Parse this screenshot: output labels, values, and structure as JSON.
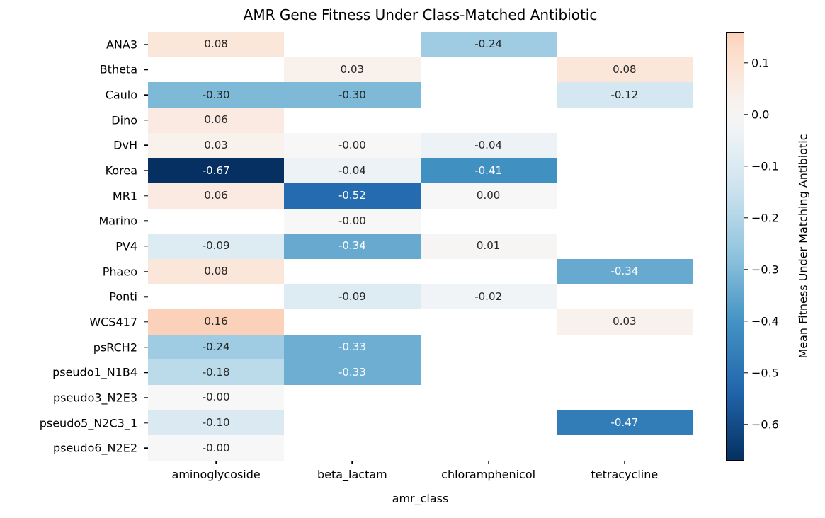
{
  "chart_data": {
    "type": "heatmap",
    "title": "AMR Gene Fitness Under Class-Matched Antibiotic",
    "xlabel": "amr_class",
    "ylabel": "",
    "colorbar_label": "Mean Fitness Under Matching Antibiotic",
    "columns": [
      "aminoglycoside",
      "beta_lactam",
      "chloramphenicol",
      "tetracycline"
    ],
    "rows": [
      "ANA3",
      "Btheta",
      "Caulo",
      "Dino",
      "DvH",
      "Korea",
      "MR1",
      "Marino",
      "PV4",
      "Phaeo",
      "Ponti",
      "WCS417",
      "psRCH2",
      "pseudo1_N1B4",
      "pseudo3_N2E3",
      "pseudo5_N2C3_1",
      "pseudo6_N2E2"
    ],
    "values": [
      [
        0.08,
        null,
        -0.24,
        null
      ],
      [
        null,
        0.03,
        null,
        0.08
      ],
      [
        -0.3,
        -0.3,
        null,
        -0.12
      ],
      [
        0.06,
        null,
        null,
        null
      ],
      [
        0.03,
        -0.0,
        -0.04,
        null
      ],
      [
        -0.67,
        -0.04,
        -0.41,
        null
      ],
      [
        0.06,
        -0.52,
        0.0,
        null
      ],
      [
        null,
        -0.0,
        null,
        null
      ],
      [
        -0.09,
        -0.34,
        0.01,
        null
      ],
      [
        0.08,
        null,
        null,
        -0.34
      ],
      [
        null,
        -0.09,
        -0.02,
        null
      ],
      [
        0.16,
        null,
        null,
        0.03
      ],
      [
        -0.24,
        -0.33,
        null,
        null
      ],
      [
        -0.18,
        -0.33,
        null,
        null
      ],
      [
        -0.0,
        null,
        null,
        null
      ],
      [
        -0.1,
        null,
        null,
        -0.47
      ],
      [
        -0.0,
        null,
        null,
        null
      ]
    ],
    "annotations": [
      [
        "0.08",
        null,
        "-0.24",
        null
      ],
      [
        null,
        "0.03",
        null,
        "0.08"
      ],
      [
        "-0.30",
        "-0.30",
        null,
        "-0.12"
      ],
      [
        "0.06",
        null,
        null,
        null
      ],
      [
        "0.03",
        "-0.00",
        "-0.04",
        null
      ],
      [
        "-0.67",
        "-0.04",
        "-0.41",
        null
      ],
      [
        "0.06",
        "-0.52",
        "0.00",
        null
      ],
      [
        null,
        "-0.00",
        null,
        null
      ],
      [
        "-0.09",
        "-0.34",
        "0.01",
        null
      ],
      [
        "0.08",
        null,
        null,
        "-0.34"
      ],
      [
        null,
        "-0.09",
        "-0.02",
        null
      ],
      [
        "0.16",
        null,
        null,
        "0.03"
      ],
      [
        "-0.24",
        "-0.33",
        null,
        null
      ],
      [
        "-0.18",
        "-0.33",
        null,
        null
      ],
      [
        "-0.00",
        null,
        null,
        null
      ],
      [
        "-0.10",
        null,
        null,
        "-0.47"
      ],
      [
        "-0.00",
        null,
        null,
        null
      ]
    ],
    "colormap": "RdBu_r",
    "center": 0,
    "vmin": -0.67,
    "vmax": 0.16,
    "colorbar_ticks": [
      0.1,
      0.0,
      -0.1,
      -0.2,
      -0.3,
      -0.4,
      -0.5,
      -0.6
    ],
    "colorbar_tick_labels": [
      "0.1",
      "0.0",
      "−0.1",
      "−0.2",
      "−0.3",
      "−0.4",
      "−0.5",
      "−0.6"
    ],
    "legend_position": "right",
    "grid": false
  },
  "colors": {
    "background": "#ffffff",
    "missing_cell": "#ffffff",
    "dark_text": "#262626",
    "light_text": "#ffffff",
    "tick_color": "#000000",
    "colormap_anchors": [
      "#053061",
      "#2166ac",
      "#4393c3",
      "#92c5de",
      "#d1e5f0",
      "#f7f7f7",
      "#fddbc7",
      "#f4a582",
      "#d6604d",
      "#b2182b",
      "#67001f"
    ]
  }
}
